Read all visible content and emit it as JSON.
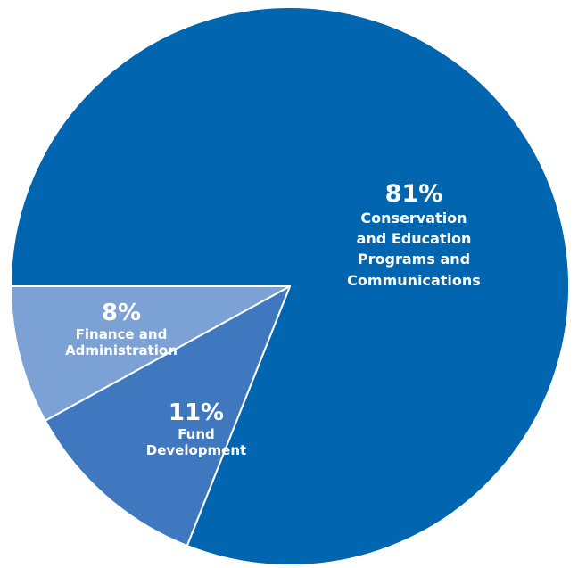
{
  "chart_data": {
    "type": "pie",
    "slices": [
      {
        "percent": 81,
        "label": "Conservation\nand Education\nPrograms and\nCommunications",
        "color": "#0165AF"
      },
      {
        "percent": 11,
        "label": "Fund\nDevelopment",
        "color": "#3F78BF"
      },
      {
        "percent": 8,
        "label": "Finance and\nAdministration",
        "color": "#7CA1D4"
      }
    ],
    "pct_text": [
      "81%",
      "11%",
      "8%"
    ],
    "separator_color": "#ffffff"
  }
}
